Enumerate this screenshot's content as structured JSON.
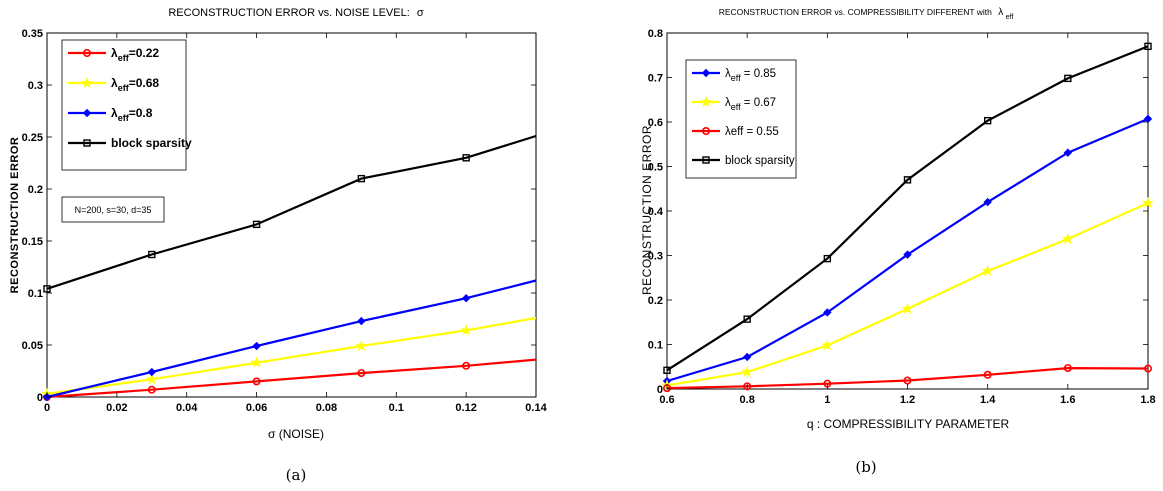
{
  "chart_data": [
    {
      "type": "line",
      "title": "RECONSTRUCTION ERROR vs.  NOISE LEVEL:",
      "title_symbol": "σ",
      "xlabel": "σ (NOISE)",
      "ylabel": "RECONSTRUCTION ERROR",
      "xlim": [
        0,
        0.14
      ],
      "ylim": [
        0,
        0.35
      ],
      "xticks": [
        "0",
        "0.02",
        "0.04",
        "0.06",
        "0.08",
        "0.1",
        "0.12",
        "0.14"
      ],
      "yticks": [
        "0",
        "0.05",
        "0.1",
        "0.15",
        "0.2",
        "0.25",
        "0.3",
        "0.35"
      ],
      "legend_position": "top-left",
      "annotation": "N=200, s=30, d=35",
      "caption": "(a)",
      "series": [
        {
          "legend_main": "λ",
          "legend_sub": "eff",
          "legend_tail": "=0.22",
          "color": "#ff0000",
          "marker": "circle",
          "points": [
            [
              0,
              0
            ],
            [
              0.03,
              0.007
            ],
            [
              0.06,
              0.015
            ],
            [
              0.09,
              0.023
            ],
            [
              0.12,
              0.03
            ]
          ],
          "end": [
            0.14,
            0.036
          ]
        },
        {
          "legend_main": "λ",
          "legend_sub": "eff",
          "legend_tail": "=0.68",
          "color": "#ffff00",
          "marker": "star",
          "points": [
            [
              0,
              0.003
            ],
            [
              0.03,
              0.017
            ],
            [
              0.06,
              0.033
            ],
            [
              0.09,
              0.049
            ],
            [
              0.12,
              0.064
            ]
          ],
          "end": [
            0.14,
            0.076
          ]
        },
        {
          "legend_main": "λ",
          "legend_sub": "eff",
          "legend_tail": "=0.8",
          "color": "#0000ff",
          "marker": "diamond",
          "points": [
            [
              0,
              0
            ],
            [
              0.03,
              0.024
            ],
            [
              0.06,
              0.049
            ],
            [
              0.09,
              0.073
            ],
            [
              0.12,
              0.095
            ]
          ],
          "end": [
            0.14,
            0.112
          ]
        },
        {
          "legend_main": "block sparsity",
          "legend_sub": "",
          "legend_tail": "",
          "color": "#000000",
          "marker": "square",
          "points": [
            [
              0,
              0.104
            ],
            [
              0.03,
              0.137
            ],
            [
              0.06,
              0.166
            ],
            [
              0.09,
              0.21
            ],
            [
              0.12,
              0.23
            ]
          ],
          "end": [
            0.14,
            0.251
          ]
        }
      ]
    },
    {
      "type": "line",
      "title": "RECONSTRUCTION ERROR vs. COMPRESSIBILITY  DIFFERENT  with",
      "title_symbol": "λ",
      "title_sub": "eff",
      "xlabel": "q : COMPRESSIBILITY PARAMETER",
      "ylabel": "RECONSTRUCTION ERROR",
      "xlim": [
        0.6,
        1.8
      ],
      "ylim": [
        0,
        0.8
      ],
      "xticks": [
        "0.6",
        "0.8",
        "1",
        "1.2",
        "1.4",
        "1.6",
        "1.8"
      ],
      "yticks": [
        "0",
        "0.1",
        "0.2",
        "0.3",
        "0.4",
        "0.5",
        "0.6",
        "0.7",
        "0.8"
      ],
      "legend_position": "top-left",
      "caption": "(b)",
      "series": [
        {
          "legend_main": "λ",
          "legend_sub": "eff",
          "legend_tail": " = 0.85",
          "color": "#0000ff",
          "marker": "diamond",
          "points": [
            [
              0.6,
              0.018
            ],
            [
              0.8,
              0.072
            ],
            [
              1.0,
              0.172
            ],
            [
              1.2,
              0.302
            ],
            [
              1.4,
              0.42
            ],
            [
              1.6,
              0.531
            ],
            [
              1.8,
              0.607
            ]
          ]
        },
        {
          "legend_main": "λ",
          "legend_sub": "eff",
          "legend_tail": " = 0.67",
          "color": "#ffff00",
          "marker": "star",
          "points": [
            [
              0.6,
              0.008
            ],
            [
              0.8,
              0.038
            ],
            [
              1.0,
              0.098
            ],
            [
              1.2,
              0.18
            ],
            [
              1.4,
              0.265
            ],
            [
              1.6,
              0.337
            ],
            [
              1.8,
              0.418
            ]
          ]
        },
        {
          "legend_main": "λeff = 0.55",
          "legend_sub": "",
          "legend_tail": "",
          "color": "#ff0000",
          "marker": "circle",
          "points": [
            [
              0.6,
              0.002
            ],
            [
              0.8,
              0.006
            ],
            [
              1.0,
              0.012
            ],
            [
              1.2,
              0.019
            ],
            [
              1.4,
              0.032
            ],
            [
              1.6,
              0.047
            ],
            [
              1.8,
              0.046
            ]
          ]
        },
        {
          "legend_main": "block sparsity",
          "legend_sub": "",
          "legend_tail": "",
          "color": "#000000",
          "marker": "square",
          "points": [
            [
              0.6,
              0.042
            ],
            [
              0.8,
              0.157
            ],
            [
              1.0,
              0.293
            ],
            [
              1.2,
              0.47
            ],
            [
              1.4,
              0.603
            ],
            [
              1.6,
              0.698
            ],
            [
              1.8,
              0.77
            ]
          ]
        }
      ]
    }
  ]
}
